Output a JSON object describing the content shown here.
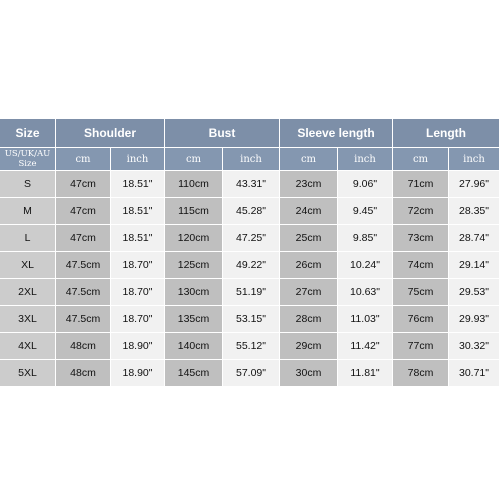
{
  "table": {
    "headers": [
      "Size",
      "Shoulder",
      "Bust",
      "Sleeve length",
      "Length"
    ],
    "size_label": [
      "US/UK/AU",
      "Size"
    ],
    "units": [
      "cm",
      "inch",
      "cm",
      "inch",
      "cm",
      "inch",
      "cm",
      "inch"
    ],
    "rows": [
      [
        "S",
        "47cm",
        "18.51\"",
        "110cm",
        "43.31\"",
        "23cm",
        "9.06\"",
        "71cm",
        "27.96\""
      ],
      [
        "M",
        "47cm",
        "18.51\"",
        "115cm",
        "45.28\"",
        "24cm",
        "9.45\"",
        "72cm",
        "28.35\""
      ],
      [
        "L",
        "47cm",
        "18.51\"",
        "120cm",
        "47.25\"",
        "25cm",
        "9.85\"",
        "73cm",
        "28.74\""
      ],
      [
        "XL",
        "47.5cm",
        "18.70\"",
        "125cm",
        "49.22\"",
        "26cm",
        "10.24\"",
        "74cm",
        "29.14\""
      ],
      [
        "2XL",
        "47.5cm",
        "18.70\"",
        "130cm",
        "51.19\"",
        "27cm",
        "10.63\"",
        "75cm",
        "29.53\""
      ],
      [
        "3XL",
        "47.5cm",
        "18.70\"",
        "135cm",
        "53.15\"",
        "28cm",
        "11.03\"",
        "76cm",
        "29.93\""
      ],
      [
        "4XL",
        "48cm",
        "18.90\"",
        "140cm",
        "55.12\"",
        "29cm",
        "11.42\"",
        "77cm",
        "30.32\""
      ],
      [
        "5XL",
        "48cm",
        "18.90\"",
        "145cm",
        "57.09\"",
        "30cm",
        "11.81\"",
        "78cm",
        "30.71\""
      ]
    ]
  },
  "colors": {
    "header": "#7d8fa8",
    "subheader": "#8497b0",
    "size_cell": "#cccccc",
    "cm_cell": "#bfbfbf",
    "inch_cell": "#f1f1f1"
  }
}
